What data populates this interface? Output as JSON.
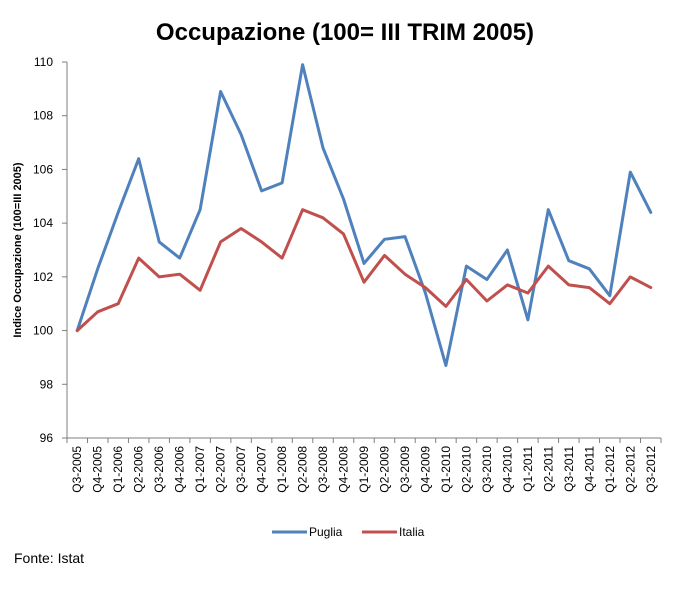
{
  "chart_data": {
    "type": "line",
    "title": "Occupazione (100= III TRIM 2005)",
    "xlabel": "",
    "ylabel": "Indice Occupazione (100=III 2005)",
    "ylim": [
      96,
      110
    ],
    "yticks": [
      96,
      98,
      100,
      102,
      104,
      106,
      108,
      110
    ],
    "grid": false,
    "legend_position": "bottom",
    "categories": [
      "Q3-2005",
      "Q4-2005",
      "Q1-2006",
      "Q2-2006",
      "Q3-2006",
      "Q4-2006",
      "Q1-2007",
      "Q2-2007",
      "Q3-2007",
      "Q4-2007",
      "Q1-2008",
      "Q2-2008",
      "Q3-2008",
      "Q4-2008",
      "Q1-2009",
      "Q2-2009",
      "Q3-2009",
      "Q4-2009",
      "Q1-2010",
      "Q2-2010",
      "Q3-2010",
      "Q4-2010",
      "Q1-2011",
      "Q2-2011",
      "Q3-2011",
      "Q4-2011",
      "Q1-2012",
      "Q2-2012",
      "Q3-2012"
    ],
    "series": [
      {
        "name": "Puglia",
        "color": "#4F81BD",
        "values": [
          100.0,
          102.3,
          104.4,
          106.4,
          103.3,
          102.7,
          104.5,
          108.9,
          107.3,
          105.2,
          105.5,
          109.9,
          106.8,
          104.9,
          102.5,
          103.4,
          103.5,
          101.4,
          98.7,
          102.4,
          101.9,
          103.0,
          100.4,
          104.5,
          102.6,
          102.3,
          101.3,
          105.9,
          104.4
        ]
      },
      {
        "name": "Italia",
        "color": "#C0504D",
        "values": [
          100.0,
          100.7,
          101.0,
          102.7,
          102.0,
          102.1,
          101.5,
          103.3,
          103.8,
          103.3,
          102.7,
          104.5,
          104.2,
          103.6,
          101.8,
          102.8,
          102.1,
          101.6,
          100.9,
          101.9,
          101.1,
          101.7,
          101.4,
          102.4,
          101.7,
          101.6,
          101.0,
          102.0,
          101.6
        ]
      }
    ]
  },
  "source_text": "Fonte: Istat"
}
